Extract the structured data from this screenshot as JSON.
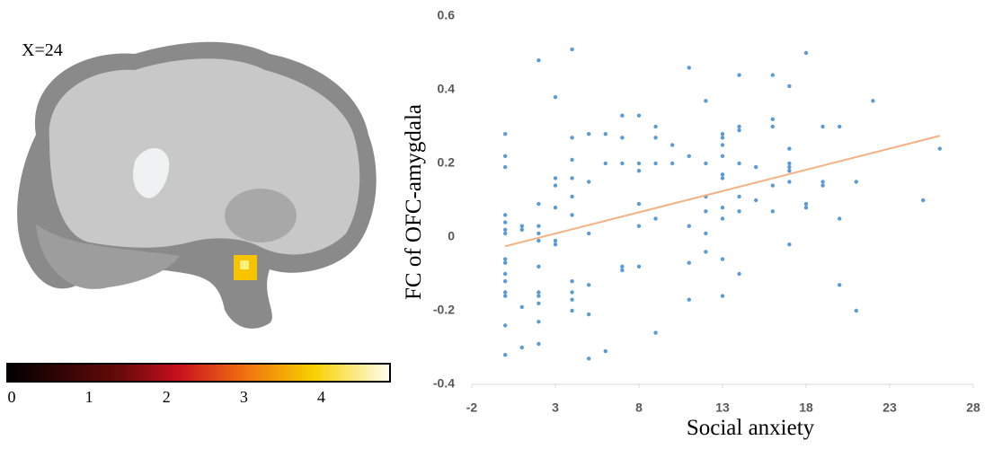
{
  "brain_image": {
    "slice_label": "X=24",
    "colorbar": {
      "lim": [
        0,
        4.9
      ],
      "ticks": [
        0,
        1,
        2,
        3,
        4
      ]
    }
  },
  "chart_data": {
    "type": "scatter",
    "x_label": "Social anxiety",
    "y_label": "FC of OFC-amygdala",
    "xlim": [
      -2,
      28
    ],
    "xticks": [
      -2,
      3,
      8,
      13,
      18,
      23,
      28
    ],
    "ylim": [
      -0.4,
      0.6
    ],
    "yticks": [
      -0.4,
      -0.2,
      0,
      0.2,
      0.4,
      0.6
    ],
    "grid": false,
    "series": [
      {
        "color": "#5b9bd5",
        "x": [
          0,
          0,
          0,
          0,
          0,
          0,
          0,
          0,
          0,
          0,
          0,
          0,
          0,
          0,
          0,
          1,
          1,
          1,
          1,
          2,
          2,
          2,
          2,
          2,
          2,
          2,
          2,
          2,
          2,
          2,
          3,
          3,
          3,
          3,
          3,
          3,
          4,
          4,
          4,
          4,
          4,
          4,
          4,
          4,
          4,
          4,
          5,
          5,
          5,
          5,
          5,
          5,
          6,
          6,
          6,
          7,
          7,
          7,
          7,
          7,
          8,
          8,
          8,
          8,
          8,
          8,
          9,
          9,
          9,
          9,
          9,
          10,
          10,
          11,
          11,
          11,
          11,
          11,
          12,
          12,
          12,
          12,
          12,
          12,
          13,
          13,
          13,
          13,
          13,
          13,
          13,
          13,
          13,
          13,
          14,
          14,
          14,
          14,
          14,
          14,
          14,
          15,
          15,
          16,
          16,
          16,
          16,
          16,
          17,
          17,
          17,
          17,
          17,
          17,
          17,
          18,
          18,
          18,
          19,
          19,
          19,
          20,
          20,
          20,
          21,
          21,
          22,
          25,
          26
        ],
        "values": [
          0.28,
          0.22,
          0.19,
          0.06,
          0.04,
          0.02,
          0.01,
          -0.06,
          -0.07,
          -0.1,
          -0.12,
          -0.15,
          -0.16,
          -0.24,
          -0.32,
          0.03,
          0.02,
          -0.19,
          -0.3,
          0.48,
          0.09,
          0.03,
          0.01,
          -0.01,
          -0.08,
          -0.15,
          -0.16,
          -0.18,
          -0.23,
          -0.29,
          0.38,
          0.16,
          0.14,
          0.08,
          -0.01,
          -0.02,
          0.51,
          0.27,
          0.21,
          0.16,
          0.11,
          0.06,
          -0.12,
          -0.15,
          -0.17,
          -0.2,
          0.28,
          0.15,
          0.01,
          -0.13,
          -0.21,
          -0.33,
          0.28,
          0.2,
          -0.31,
          0.33,
          0.27,
          0.2,
          -0.08,
          -0.09,
          0.33,
          0.2,
          0.18,
          0.09,
          0.03,
          -0.08,
          0.3,
          0.27,
          0.2,
          0.05,
          -0.26,
          0.25,
          0.2,
          0.46,
          0.22,
          0.03,
          -0.07,
          -0.17,
          0.37,
          0.2,
          0.11,
          0.07,
          0.01,
          -0.04,
          0.28,
          0.27,
          0.25,
          0.22,
          0.17,
          0.16,
          0.08,
          0.05,
          -0.06,
          -0.16,
          0.44,
          0.3,
          0.29,
          0.2,
          0.11,
          0.07,
          -0.1,
          0.19,
          0.1,
          0.44,
          0.32,
          0.3,
          0.14,
          0.07,
          0.41,
          0.24,
          0.2,
          0.19,
          0.18,
          0.15,
          -0.02,
          0.5,
          0.09,
          0.08,
          0.3,
          0.15,
          0.14,
          0.3,
          0.05,
          -0.13,
          0.15,
          -0.2,
          0.37,
          0.1,
          0.24
        ]
      }
    ],
    "trendline": {
      "color": "#f4b183",
      "x": [
        0,
        26
      ],
      "values": [
        -0.025,
        0.275
      ]
    }
  }
}
